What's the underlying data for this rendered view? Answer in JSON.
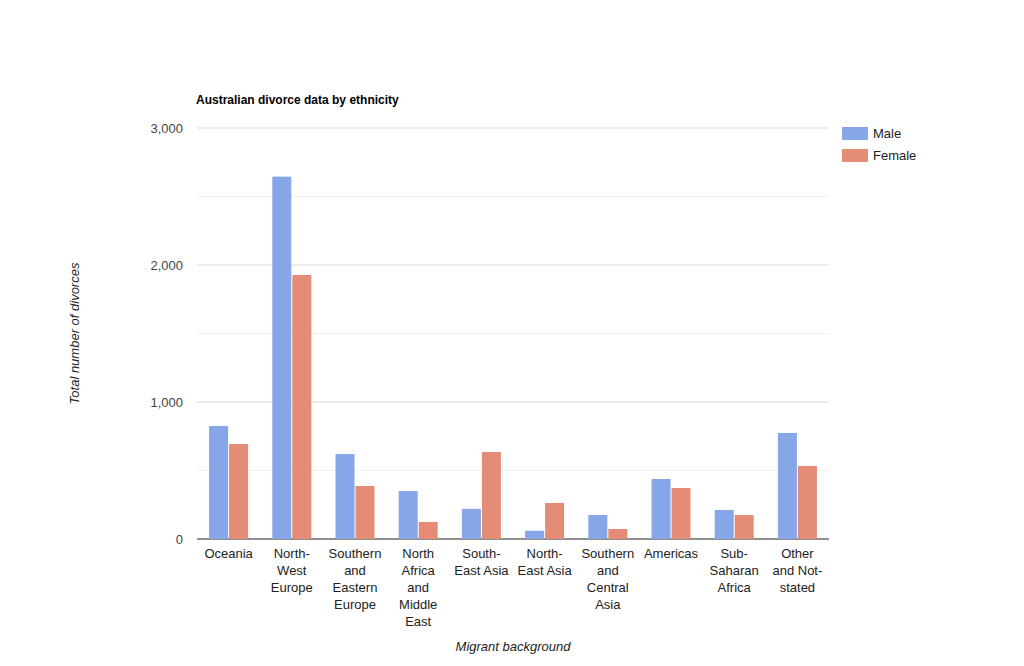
{
  "chart_data": {
    "type": "bar",
    "title": "Australian divorce data by ethnicity",
    "x_label": "Migrant background",
    "y_label": "Total number of divorces",
    "categories": [
      "Oceania",
      "North-West Europe",
      "Southern and Eastern Europe",
      "North Africa and Middle East",
      "South-East Asia",
      "North-East Asia",
      "Southern and Central Asia",
      "Americas",
      "Sub-Saharan Africa",
      "Other and Not-stated"
    ],
    "series": [
      {
        "name": "Male",
        "color": "#87a6e8",
        "values": [
          825,
          2645,
          620,
          350,
          220,
          60,
          175,
          438,
          212,
          774
        ]
      },
      {
        "name": "Female",
        "color": "#e48c75",
        "values": [
          693,
          1927,
          387,
          124,
          635,
          263,
          73,
          372,
          175,
          533
        ]
      }
    ],
    "ylim": [
      0,
      3000
    ],
    "yticks": [
      0,
      {
        "value": 1000,
        "label": "1,000"
      },
      {
        "value": 2000,
        "label": "2,000"
      },
      {
        "value": 3000,
        "label": "3,000"
      }
    ],
    "grid": true,
    "legend": "right"
  }
}
